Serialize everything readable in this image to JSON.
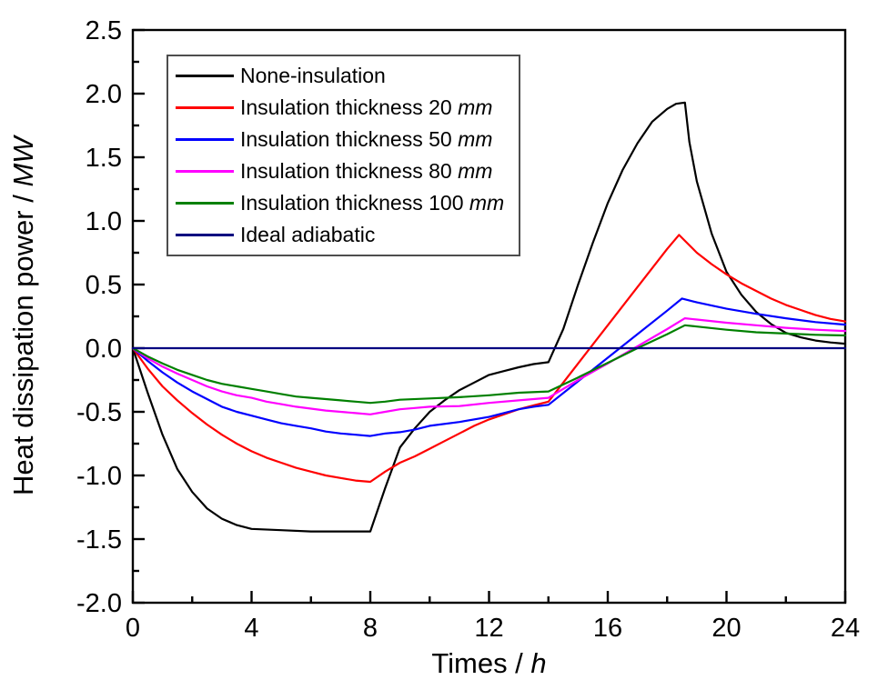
{
  "chart_data": {
    "type": "line",
    "title": "",
    "xlabel": "Times / ",
    "xlabel_italic": "h",
    "ylabel": "Heat dissipation power / ",
    "ylabel_italic": "MW",
    "xlim": [
      0,
      24
    ],
    "ylim": [
      -2.0,
      2.5
    ],
    "grid": false,
    "legend_position": "top-left",
    "x_major_ticks": [
      0,
      4,
      8,
      12,
      16,
      20,
      24
    ],
    "x_tick_labels": [
      "0",
      "4",
      "8",
      "12",
      "16",
      "20",
      "24"
    ],
    "x_minor_ticks": [
      2,
      6,
      10,
      14,
      18,
      22
    ],
    "y_major_ticks": [
      2.5,
      2.0,
      1.5,
      1.0,
      0.5,
      0.0,
      -0.5,
      -1.0,
      -1.5,
      -2.0
    ],
    "y_tick_labels": [
      "2.5",
      "2.0",
      "1.5",
      "1.0",
      "0.5",
      "0.0",
      "-0.5",
      "-1.0",
      "-1.5",
      "-2.0"
    ],
    "y_minor_ticks": [
      2.25,
      1.75,
      1.25,
      0.75,
      0.25,
      -0.25,
      -0.75,
      -1.25,
      -1.75
    ],
    "axis_color": "#000000",
    "series": [
      {
        "name": "None-insulation",
        "name_italic": "",
        "color": "#000000",
        "points": [
          [
            0,
            0
          ],
          [
            0.5,
            -0.35
          ],
          [
            1,
            -0.68
          ],
          [
            1.5,
            -0.95
          ],
          [
            2,
            -1.13
          ],
          [
            2.5,
            -1.26
          ],
          [
            3,
            -1.34
          ],
          [
            3.5,
            -1.39
          ],
          [
            4,
            -1.42
          ],
          [
            5,
            -1.43
          ],
          [
            6,
            -1.44
          ],
          [
            7,
            -1.44
          ],
          [
            8,
            -1.44
          ],
          [
            8.5,
            -1.1
          ],
          [
            9,
            -0.78
          ],
          [
            9.5,
            -0.63
          ],
          [
            10,
            -0.5
          ],
          [
            10.5,
            -0.41
          ],
          [
            11,
            -0.33
          ],
          [
            11.5,
            -0.27
          ],
          [
            12,
            -0.21
          ],
          [
            12.5,
            -0.18
          ],
          [
            13,
            -0.15
          ],
          [
            13.5,
            -0.125
          ],
          [
            14,
            -0.11
          ],
          [
            14.5,
            0.15
          ],
          [
            15,
            0.5
          ],
          [
            15.5,
            0.83
          ],
          [
            16,
            1.14
          ],
          [
            16.5,
            1.4
          ],
          [
            17,
            1.61
          ],
          [
            17.5,
            1.78
          ],
          [
            18,
            1.88
          ],
          [
            18.3,
            1.92
          ],
          [
            18.6,
            1.93
          ],
          [
            18.75,
            1.62
          ],
          [
            19,
            1.31
          ],
          [
            19.5,
            0.9
          ],
          [
            20,
            0.6
          ],
          [
            20.5,
            0.42
          ],
          [
            21,
            0.285
          ],
          [
            21.5,
            0.19
          ],
          [
            22,
            0.12
          ],
          [
            22.5,
            0.085
          ],
          [
            23,
            0.06
          ],
          [
            23.5,
            0.045
          ],
          [
            24,
            0.035
          ]
        ]
      },
      {
        "name": "Insulation thickness 20 ",
        "name_italic": "mm",
        "color": "#ff0000",
        "points": [
          [
            0,
            0
          ],
          [
            0.5,
            -0.16
          ],
          [
            1,
            -0.3
          ],
          [
            1.5,
            -0.41
          ],
          [
            2,
            -0.51
          ],
          [
            2.5,
            -0.6
          ],
          [
            3,
            -0.68
          ],
          [
            3.5,
            -0.75
          ],
          [
            4,
            -0.81
          ],
          [
            4.5,
            -0.86
          ],
          [
            5,
            -0.9
          ],
          [
            5.5,
            -0.94
          ],
          [
            6,
            -0.97
          ],
          [
            6.5,
            -1.0
          ],
          [
            7,
            -1.02
          ],
          [
            7.5,
            -1.04
          ],
          [
            8,
            -1.05
          ],
          [
            8.5,
            -0.97
          ],
          [
            9,
            -0.9
          ],
          [
            9.5,
            -0.85
          ],
          [
            10,
            -0.79
          ],
          [
            10.5,
            -0.73
          ],
          [
            11,
            -0.67
          ],
          [
            11.5,
            -0.61
          ],
          [
            12,
            -0.56
          ],
          [
            12.5,
            -0.52
          ],
          [
            13,
            -0.48
          ],
          [
            13.5,
            -0.45
          ],
          [
            14,
            -0.42
          ],
          [
            15,
            -0.12
          ],
          [
            16,
            0.18
          ],
          [
            17,
            0.48
          ],
          [
            18,
            0.78
          ],
          [
            18.4,
            0.89
          ],
          [
            19,
            0.75
          ],
          [
            19.5,
            0.66
          ],
          [
            20,
            0.58
          ],
          [
            20.5,
            0.51
          ],
          [
            21,
            0.45
          ],
          [
            21.5,
            0.39
          ],
          [
            22,
            0.34
          ],
          [
            22.5,
            0.3
          ],
          [
            23,
            0.26
          ],
          [
            23.5,
            0.23
          ],
          [
            24,
            0.21
          ]
        ]
      },
      {
        "name": "Insulation thickness 50 ",
        "name_italic": "mm",
        "color": "#0000ff",
        "points": [
          [
            0,
            0
          ],
          [
            0.5,
            -0.1
          ],
          [
            1,
            -0.19
          ],
          [
            1.5,
            -0.27
          ],
          [
            2,
            -0.34
          ],
          [
            2.5,
            -0.4
          ],
          [
            3,
            -0.46
          ],
          [
            3.5,
            -0.5
          ],
          [
            4,
            -0.53
          ],
          [
            4.5,
            -0.56
          ],
          [
            5,
            -0.59
          ],
          [
            5.5,
            -0.61
          ],
          [
            6,
            -0.63
          ],
          [
            6.5,
            -0.655
          ],
          [
            7,
            -0.67
          ],
          [
            7.5,
            -0.68
          ],
          [
            8,
            -0.69
          ],
          [
            8.5,
            -0.67
          ],
          [
            9,
            -0.66
          ],
          [
            9.5,
            -0.64
          ],
          [
            10,
            -0.61
          ],
          [
            11,
            -0.58
          ],
          [
            12,
            -0.54
          ],
          [
            13,
            -0.48
          ],
          [
            13.5,
            -0.46
          ],
          [
            14,
            -0.445
          ],
          [
            15,
            -0.26
          ],
          [
            16,
            -0.075
          ],
          [
            17,
            0.11
          ],
          [
            18,
            0.295
          ],
          [
            18.5,
            0.39
          ],
          [
            19,
            0.36
          ],
          [
            20,
            0.31
          ],
          [
            21,
            0.27
          ],
          [
            22,
            0.235
          ],
          [
            23,
            0.205
          ],
          [
            24,
            0.185
          ]
        ]
      },
      {
        "name": "Insulation thickness 80 ",
        "name_italic": "mm",
        "color": "#ff00ff",
        "points": [
          [
            0,
            0
          ],
          [
            0.5,
            -0.08
          ],
          [
            1,
            -0.145
          ],
          [
            1.5,
            -0.2
          ],
          [
            2,
            -0.25
          ],
          [
            2.5,
            -0.3
          ],
          [
            3,
            -0.34
          ],
          [
            3.5,
            -0.37
          ],
          [
            4,
            -0.39
          ],
          [
            4.5,
            -0.42
          ],
          [
            5,
            -0.44
          ],
          [
            5.5,
            -0.46
          ],
          [
            6,
            -0.475
          ],
          [
            6.5,
            -0.49
          ],
          [
            7,
            -0.5
          ],
          [
            7.5,
            -0.51
          ],
          [
            8,
            -0.52
          ],
          [
            8.5,
            -0.5
          ],
          [
            9,
            -0.48
          ],
          [
            9.5,
            -0.47
          ],
          [
            10,
            -0.46
          ],
          [
            11,
            -0.455
          ],
          [
            12,
            -0.43
          ],
          [
            13,
            -0.41
          ],
          [
            14,
            -0.39
          ],
          [
            15,
            -0.25
          ],
          [
            16,
            -0.12
          ],
          [
            17,
            0.015
          ],
          [
            18,
            0.15
          ],
          [
            18.6,
            0.235
          ],
          [
            19,
            0.225
          ],
          [
            20,
            0.2
          ],
          [
            21,
            0.18
          ],
          [
            22,
            0.16
          ],
          [
            23,
            0.145
          ],
          [
            24,
            0.135
          ]
        ]
      },
      {
        "name": "Insulation thickness 100 ",
        "name_italic": "mm",
        "color": "#008000",
        "points": [
          [
            0,
            0
          ],
          [
            0.5,
            -0.065
          ],
          [
            1,
            -0.12
          ],
          [
            1.5,
            -0.17
          ],
          [
            2,
            -0.21
          ],
          [
            2.5,
            -0.25
          ],
          [
            3,
            -0.28
          ],
          [
            3.5,
            -0.3
          ],
          [
            4,
            -0.32
          ],
          [
            4.5,
            -0.34
          ],
          [
            5,
            -0.36
          ],
          [
            5.5,
            -0.38
          ],
          [
            6,
            -0.39
          ],
          [
            6.5,
            -0.4
          ],
          [
            7,
            -0.41
          ],
          [
            7.5,
            -0.42
          ],
          [
            8,
            -0.43
          ],
          [
            8.5,
            -0.42
          ],
          [
            9,
            -0.405
          ],
          [
            10,
            -0.395
          ],
          [
            11,
            -0.385
          ],
          [
            12,
            -0.37
          ],
          [
            13,
            -0.35
          ],
          [
            14,
            -0.34
          ],
          [
            15,
            -0.23
          ],
          [
            16,
            -0.115
          ],
          [
            17,
            0.0
          ],
          [
            18,
            0.11
          ],
          [
            18.6,
            0.18
          ],
          [
            19,
            0.17
          ],
          [
            20,
            0.145
          ],
          [
            21,
            0.125
          ],
          [
            22,
            0.115
          ],
          [
            23,
            0.105
          ],
          [
            24,
            0.1
          ]
        ]
      },
      {
        "name": "Ideal adiabatic",
        "name_italic": "",
        "color": "#000080",
        "points": [
          [
            0,
            0
          ],
          [
            24,
            0
          ]
        ]
      }
    ]
  }
}
